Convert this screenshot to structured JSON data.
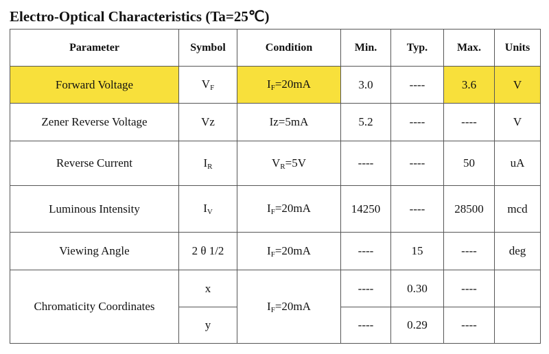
{
  "title": "Electro-Optical Characteristics (Ta=25℃)",
  "table": {
    "header": [
      "Parameter",
      "Symbol",
      "Condition",
      "Min.",
      "Typ.",
      "Max.",
      "Units"
    ],
    "rows": [
      [
        "Forward Voltage",
        {
          "text": "V",
          "sub": "F"
        },
        {
          "text": "I",
          "sub": "F",
          "tail": "=20mA"
        },
        "3.0",
        "----",
        "3.6",
        "V"
      ],
      [
        "Zener Reverse Voltage",
        "Vz",
        "Iz=5mA",
        "5.2",
        "----",
        "----",
        "V"
      ],
      [
        "Reverse Current",
        {
          "text": "I",
          "sub": "R"
        },
        {
          "text": "V",
          "sub": "R",
          "tail": "=5V"
        },
        "----",
        "----",
        "50",
        "uA"
      ],
      [
        "Luminous Intensity",
        {
          "text": "I",
          "sub": "V"
        },
        {
          "text": "I",
          "sub": "F",
          "tail": "=20mA"
        },
        "14250",
        "----",
        "28500",
        "mcd"
      ],
      [
        "Viewing Angle",
        "2 θ 1/2",
        {
          "text": "I",
          "sub": "F",
          "tail": "=20mA"
        },
        "----",
        "15",
        "----",
        "deg"
      ],
      [
        "Chromaticity Coordinates",
        "x",
        {
          "text": "I",
          "sub": "F",
          "tail": "=20mA"
        },
        "----",
        "0.30",
        "----"
      ],
      [
        "y",
        "----",
        "0.29",
        "----"
      ]
    ]
  }
}
